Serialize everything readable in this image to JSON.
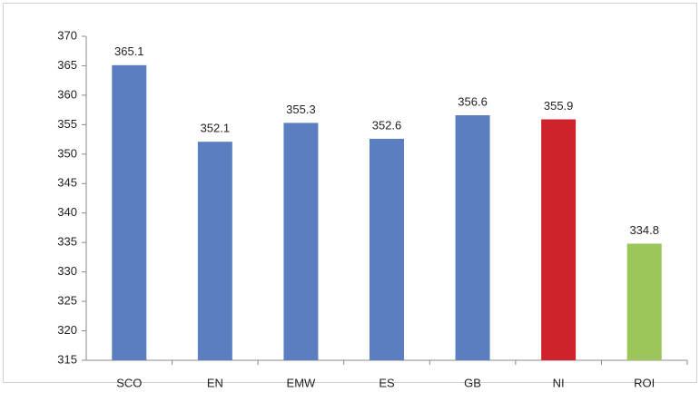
{
  "chart_data": {
    "type": "bar",
    "categories": [
      "SCO",
      "EN",
      "EMW",
      "ES",
      "GB",
      "NI",
      "ROI"
    ],
    "values": [
      365.1,
      352.1,
      355.3,
      352.6,
      356.6,
      355.9,
      334.8
    ],
    "colors": [
      "#5a7ebf",
      "#5a7ebf",
      "#5a7ebf",
      "#5a7ebf",
      "#5a7ebf",
      "#d0222a",
      "#9cc55a"
    ],
    "ylim": [
      315,
      370
    ],
    "yticks": [
      315,
      320,
      325,
      330,
      335,
      340,
      345,
      350,
      355,
      360,
      365,
      370
    ],
    "grid": false
  }
}
